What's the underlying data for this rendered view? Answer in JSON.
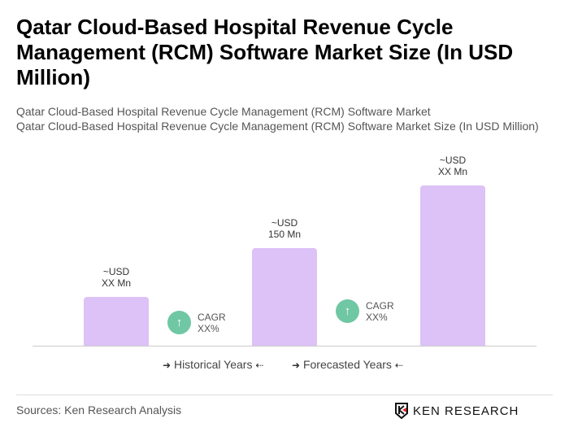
{
  "title": "Qatar Cloud-Based Hospital Revenue Cycle Management (RCM) Software Market Size (In USD Million)",
  "subtitle1": "Qatar Cloud-Based Hospital Revenue Cycle Management (RCM) Software Market",
  "subtitle2": "Qatar Cloud-Based Hospital Revenue Cycle Management (RCM) Software Market Size (In USD Million)",
  "chart_data": {
    "type": "bar",
    "categories": [
      "",
      "",
      ""
    ],
    "values": [
      75,
      150,
      246
    ],
    "bar_labels": [
      {
        "line1": "~USD",
        "line2": "XX Mn"
      },
      {
        "line1": "~USD",
        "line2": "150 Mn"
      },
      {
        "line1": "~USD",
        "line2": "XX Mn"
      }
    ],
    "bar_color": "#dcc2f7",
    "cagr": [
      {
        "line1": "CAGR",
        "line2": "XX%"
      },
      {
        "line1": "CAGR",
        "line2": "XX%"
      }
    ],
    "cagr_color": "#6fc7a4",
    "cagr_icon": "arrow-up-icon",
    "legend": [
      "Historical Years",
      "Forecasted Years"
    ],
    "legend_placement": "bottom",
    "grid": false
  },
  "legend_arrows": {
    "left": "➜",
    "right": "⇠"
  },
  "cagr_arrow": "↑",
  "source": "Sources: Ken Research Analysis",
  "logo_text": "KEN RESEARCH"
}
